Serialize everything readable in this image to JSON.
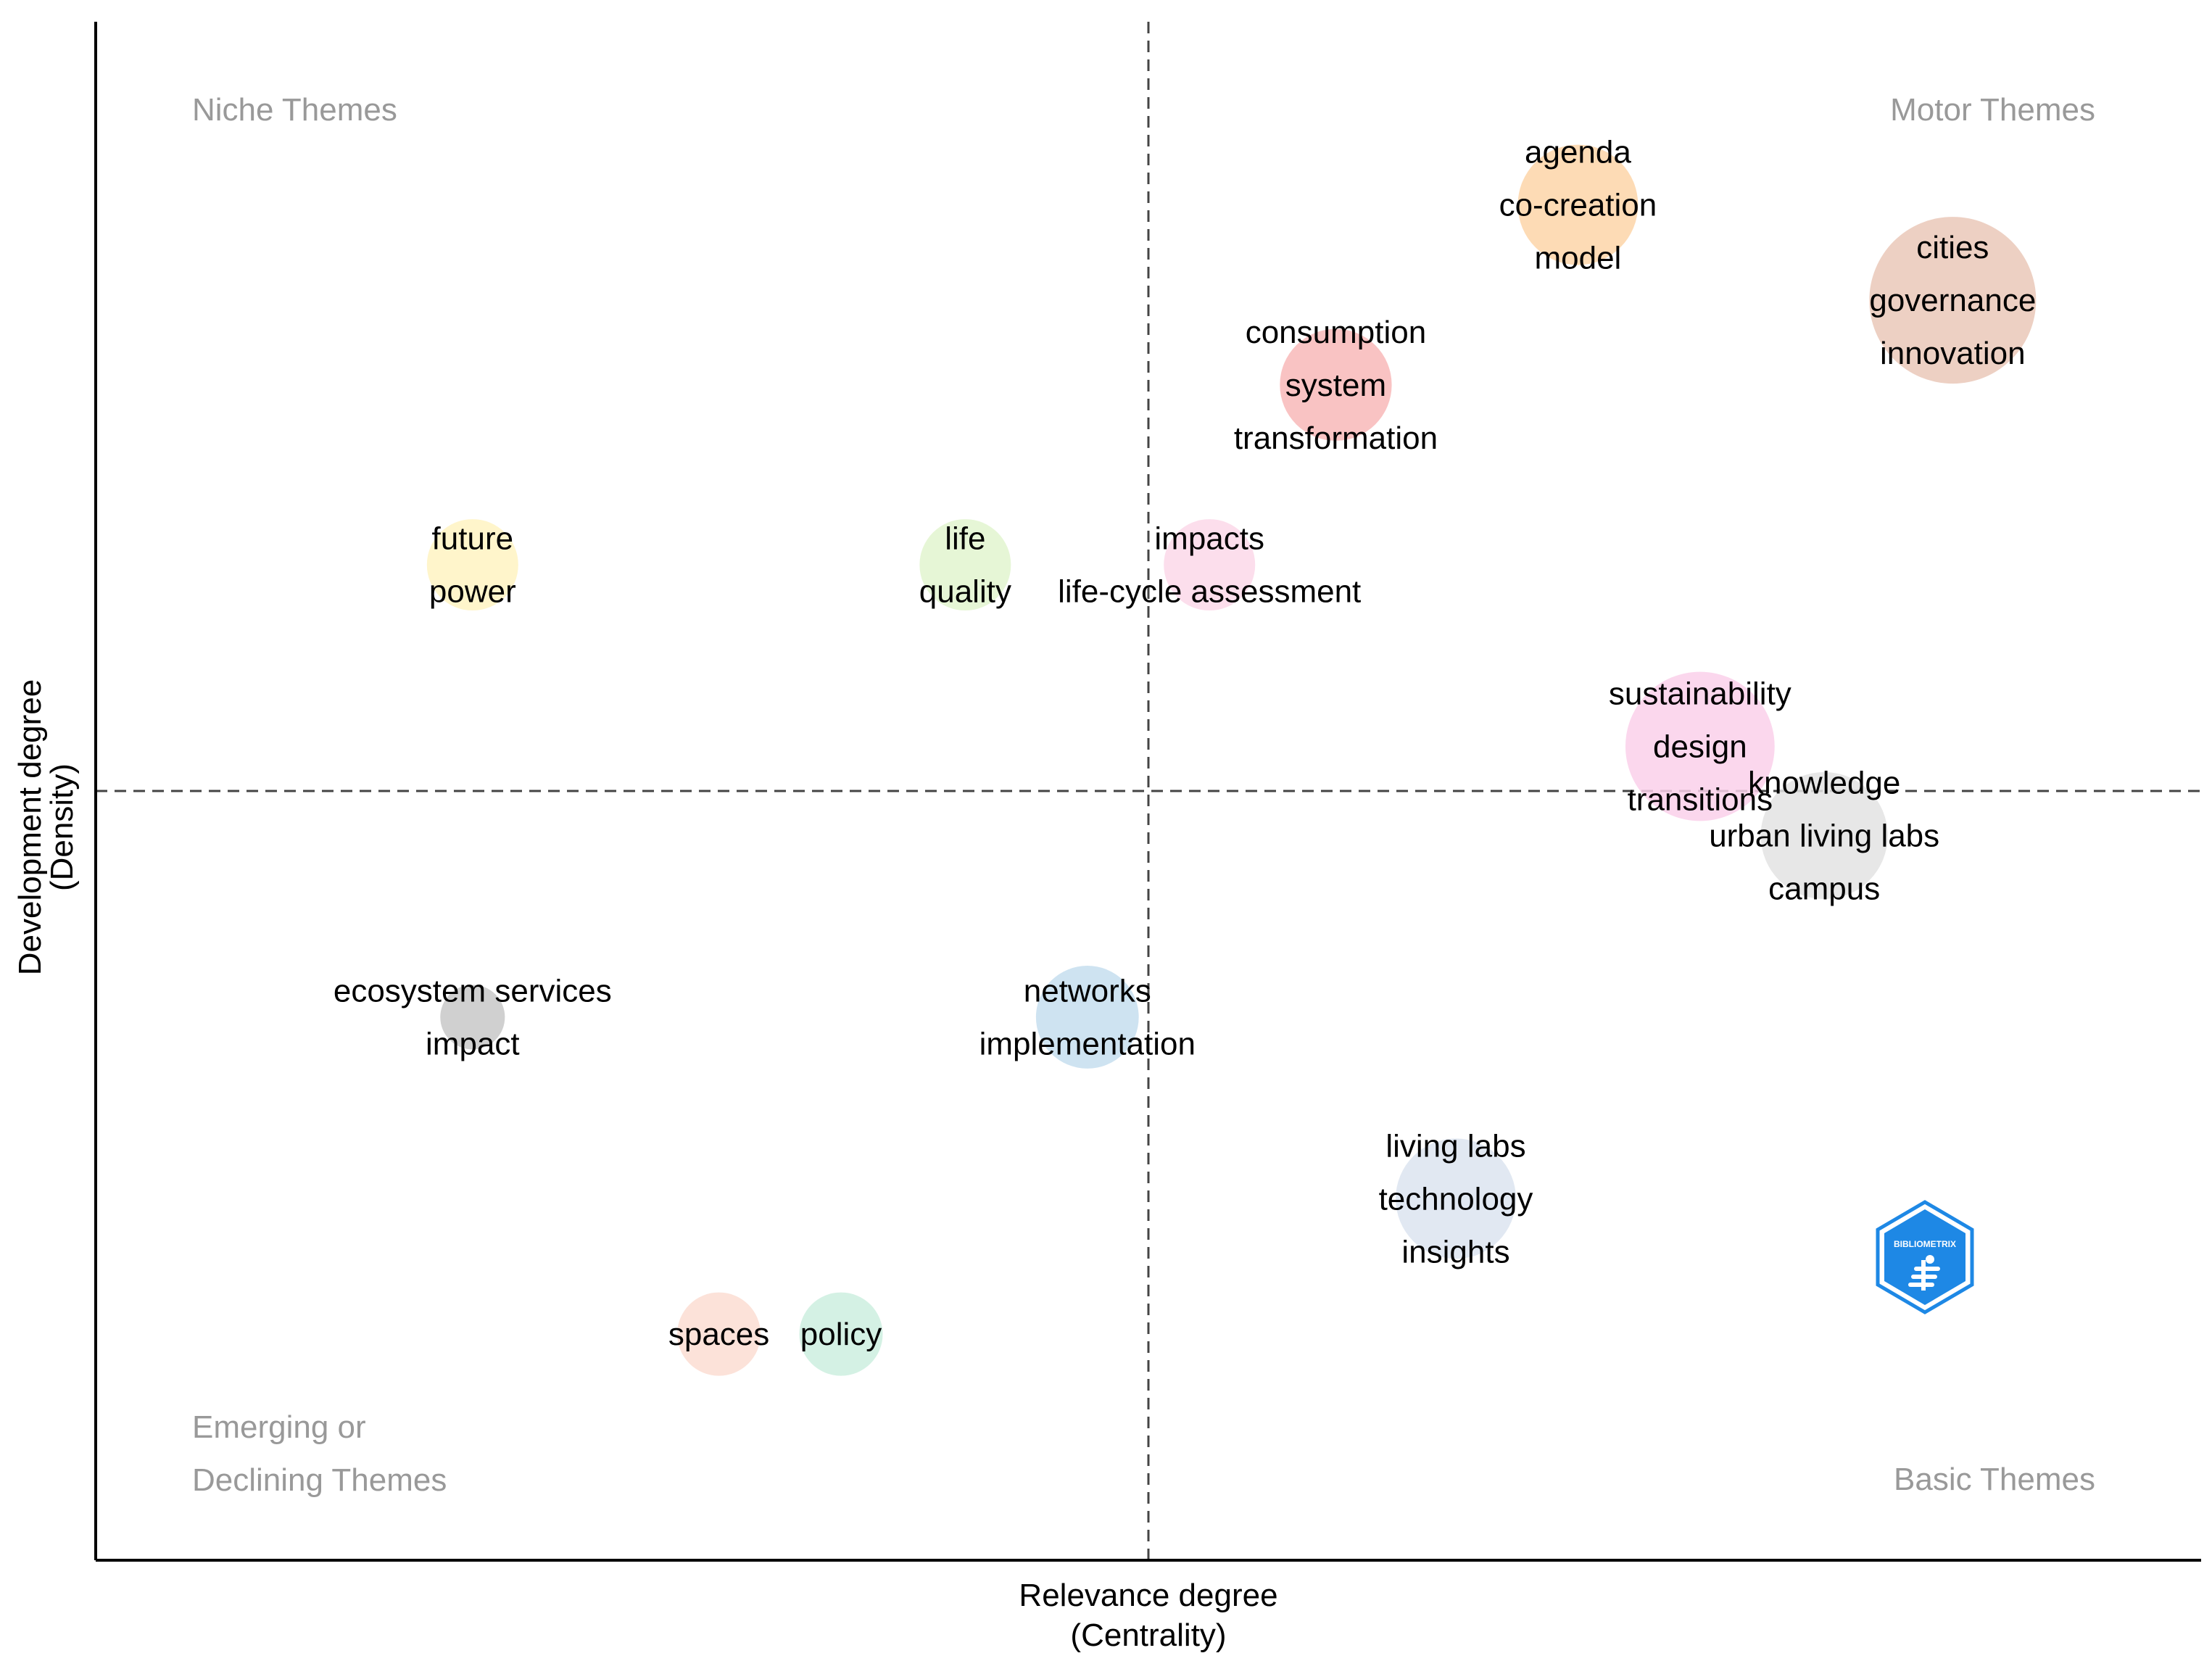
{
  "chart_data": {
    "type": "scatter",
    "title": "",
    "xlabel": [
      "Relevance degree",
      "(Centrality)"
    ],
    "ylabel": [
      "Development degree",
      "(Density)"
    ],
    "xlim": [
      0.0,
      1.0
    ],
    "ylim": [
      0.0,
      1.0
    ],
    "x_reference": 0.5,
    "y_reference": 0.5,
    "grid": false,
    "quadrant_labels": {
      "top_left": [
        "Niche Themes"
      ],
      "top_right": [
        "Motor Themes"
      ],
      "bottom_left": [
        "Emerging or",
        "Declining Themes"
      ],
      "bottom_right": [
        "Basic Themes"
      ],
      "color": "#999999"
    },
    "clusters": [
      {
        "labels": [
          "agenda",
          "co-creation",
          "model"
        ],
        "x": 0.704,
        "y": 0.881,
        "size": 0.52,
        "color": "#FDD5A8"
      },
      {
        "labels": [
          "cities",
          "governance",
          "innovation"
        ],
        "x": 0.882,
        "y": 0.819,
        "size": 1.0,
        "color": "#EAC8B8"
      },
      {
        "labels": [
          "consumption",
          "system",
          "transformation"
        ],
        "x": 0.589,
        "y": 0.764,
        "size": 0.45,
        "color": "#F8B9B9"
      },
      {
        "labels": [
          "future",
          "power"
        ],
        "x": 0.179,
        "y": 0.647,
        "size": 0.3,
        "color": "#FFF3C2"
      },
      {
        "labels": [
          "life",
          "quality"
        ],
        "x": 0.413,
        "y": 0.647,
        "size": 0.3,
        "color": "#E2F4CF"
      },
      {
        "labels": [
          "impacts",
          "life-cycle assessment"
        ],
        "x": 0.529,
        "y": 0.647,
        "size": 0.3,
        "color": "#FBD8E9"
      },
      {
        "labels": [
          "sustainability",
          "design",
          "transitions"
        ],
        "x": 0.762,
        "y": 0.529,
        "size": 0.8,
        "color": "#FAD0EA"
      },
      {
        "labels": [
          "knowledge",
          "urban living labs",
          "campus"
        ],
        "x": 0.821,
        "y": 0.471,
        "size": 0.58,
        "color": "#E3E3E3"
      },
      {
        "labels": [
          "ecosystem services",
          "impact"
        ],
        "x": 0.179,
        "y": 0.353,
        "size": 0.15,
        "color": "#C8C8C8"
      },
      {
        "labels": [
          "networks",
          "implementation"
        ],
        "x": 0.471,
        "y": 0.353,
        "size": 0.38,
        "color": "#C5DEEE"
      },
      {
        "labels": [
          "living labs",
          "technology",
          "insights"
        ],
        "x": 0.646,
        "y": 0.235,
        "size": 0.52,
        "color": "#DCE4F0"
      },
      {
        "labels": [
          "spaces"
        ],
        "x": 0.296,
        "y": 0.147,
        "size": 0.25,
        "color": "#FCDDD2"
      },
      {
        "labels": [
          "policy"
        ],
        "x": 0.354,
        "y": 0.147,
        "size": 0.25,
        "color": "#CDEEDF"
      }
    ]
  },
  "logo": {
    "text": "BIBLIOMETRIX",
    "color": "#1E88E5"
  }
}
